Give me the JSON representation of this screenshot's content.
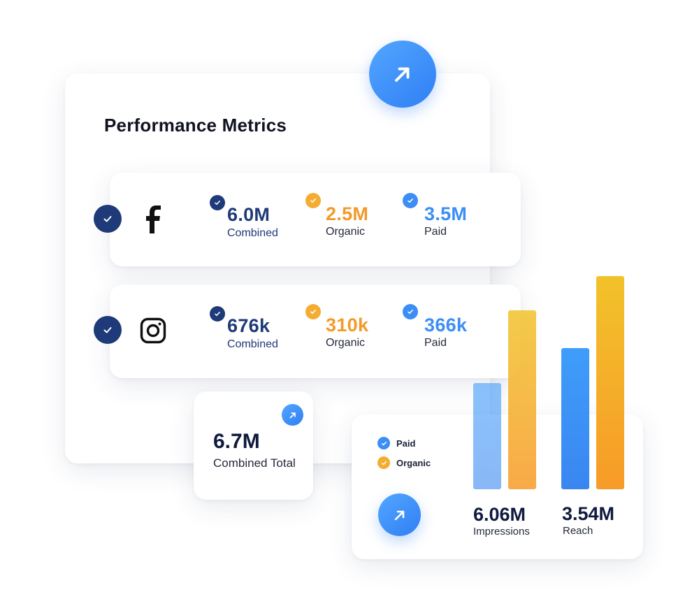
{
  "title": "Performance Metrics",
  "platforms": [
    {
      "name": "facebook",
      "metrics": {
        "combined": {
          "value": "6.0M",
          "label": "Combined"
        },
        "organic": {
          "value": "2.5M",
          "label": "Organic"
        },
        "paid": {
          "value": "3.5M",
          "label": "Paid"
        }
      }
    },
    {
      "name": "instagram",
      "metrics": {
        "combined": {
          "value": "676k",
          "label": "Combined"
        },
        "organic": {
          "value": "310k",
          "label": "Organic"
        },
        "paid": {
          "value": "366k",
          "label": "Paid"
        }
      }
    }
  ],
  "total": {
    "value": "6.7M",
    "label": "Combined Total"
  },
  "legend": {
    "paid": "Paid",
    "organic": "Organic"
  },
  "stats": [
    {
      "value": "6.06M",
      "label": "Impressions"
    },
    {
      "value": "3.54M",
      "label": "Reach"
    }
  ],
  "colors": {
    "navy": "#1e3a78",
    "orange": "#f39a2a",
    "blue": "#3c8ef5",
    "accent_gradient_start": "#53a6ff",
    "accent_gradient_end": "#2f7ff4"
  },
  "icons": {
    "fab": "arrow-up-right-icon",
    "check": "check-icon",
    "facebook": "facebook-icon",
    "instagram": "instagram-icon"
  }
}
